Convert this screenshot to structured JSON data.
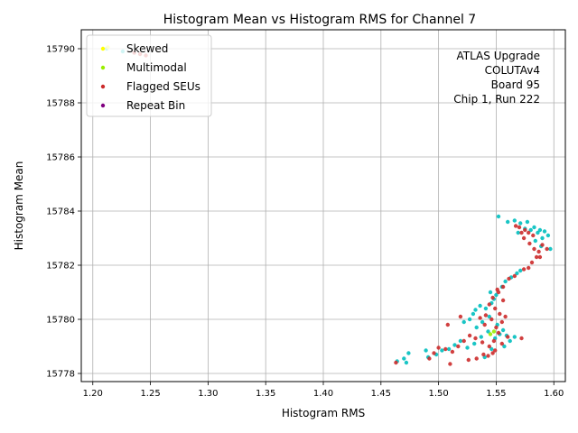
{
  "chart_data": {
    "type": "scatter",
    "title": "Histogram Mean vs Histogram RMS for Channel 7",
    "xlabel": "Histogram RMS",
    "ylabel": "Histogram Mean",
    "xlim": [
      1.19,
      1.61
    ],
    "ylim": [
      15777.7,
      15790.7
    ],
    "xticks": [
      "1.20",
      "1.25",
      "1.30",
      "1.35",
      "1.40",
      "1.45",
      "1.50",
      "1.55",
      "1.60"
    ],
    "yticks": [
      "15778",
      "15780",
      "15782",
      "15784",
      "15786",
      "15788",
      "15790"
    ],
    "grid": true,
    "legend_location": "upper-left",
    "annotation": [
      "ATLAS Upgrade",
      "COLUTAv4",
      "Board 95",
      "Chip 1, Run 222"
    ],
    "series": [
      {
        "name": "",
        "color": "#00bfbf",
        "points": [
          [
            1.212,
            15790.0
          ],
          [
            1.226,
            15789.9
          ],
          [
            1.552,
            15783.8
          ],
          [
            1.56,
            15783.6
          ],
          [
            1.566,
            15783.65
          ],
          [
            1.571,
            15783.55
          ],
          [
            1.577,
            15783.6
          ],
          [
            1.583,
            15783.4
          ],
          [
            1.588,
            15783.3
          ],
          [
            1.592,
            15783.25
          ],
          [
            1.595,
            15783.1
          ],
          [
            1.59,
            15783.0
          ],
          [
            1.586,
            15783.2
          ],
          [
            1.58,
            15783.3
          ],
          [
            1.575,
            15783.35
          ],
          [
            1.569,
            15783.2
          ],
          [
            1.597,
            15782.6
          ],
          [
            1.589,
            15782.7
          ],
          [
            1.584,
            15782.9
          ],
          [
            1.568,
            15781.7
          ],
          [
            1.563,
            15781.55
          ],
          [
            1.571,
            15781.8
          ],
          [
            1.558,
            15781.4
          ],
          [
            1.555,
            15781.2
          ],
          [
            1.55,
            15780.9
          ],
          [
            1.546,
            15780.6
          ],
          [
            1.541,
            15780.4
          ],
          [
            1.536,
            15780.5
          ],
          [
            1.53,
            15780.2
          ],
          [
            1.527,
            15780.0
          ],
          [
            1.522,
            15779.9
          ],
          [
            1.533,
            15779.7
          ],
          [
            1.538,
            15779.9
          ],
          [
            1.544,
            15780.1
          ],
          [
            1.551,
            15779.8
          ],
          [
            1.556,
            15779.6
          ],
          [
            1.559,
            15779.4
          ],
          [
            1.562,
            15779.2
          ],
          [
            1.557,
            15779.0
          ],
          [
            1.549,
            15779.3
          ],
          [
            1.543,
            15779.55
          ],
          [
            1.537,
            15779.35
          ],
          [
            1.531,
            15779.1
          ],
          [
            1.525,
            15778.95
          ],
          [
            1.519,
            15779.2
          ],
          [
            1.514,
            15779.05
          ],
          [
            1.509,
            15778.9
          ],
          [
            1.503,
            15778.85
          ],
          [
            1.498,
            15778.7
          ],
          [
            1.491,
            15778.6
          ],
          [
            1.489,
            15778.85
          ],
          [
            1.474,
            15778.75
          ],
          [
            1.47,
            15778.55
          ],
          [
            1.472,
            15778.4
          ],
          [
            1.464,
            15778.45
          ],
          [
            1.54,
            15778.6
          ],
          [
            1.546,
            15778.9
          ],
          [
            1.553,
            15779.45
          ],
          [
            1.566,
            15779.35
          ],
          [
            1.548,
            15780.75
          ],
          [
            1.545,
            15781.0
          ],
          [
            1.532,
            15780.35
          ]
        ]
      },
      {
        "name": "Skewed",
        "color": "#ffff00",
        "points": [
          [
            1.213,
            15790.05
          ]
        ]
      },
      {
        "name": "Multimodal",
        "color": "#99ee00",
        "points": [
          [
            1.545,
            15779.45
          ],
          [
            1.548,
            15779.55
          ]
        ]
      },
      {
        "name": "Flagged SEUs",
        "color": "#cc2b2b",
        "points": [
          [
            1.236,
            15789.85
          ],
          [
            1.241,
            15789.8
          ],
          [
            1.246,
            15789.75
          ],
          [
            1.57,
            15783.4
          ],
          [
            1.575,
            15783.3
          ],
          [
            1.578,
            15783.2
          ],
          [
            1.582,
            15783.1
          ],
          [
            1.574,
            15783.0
          ],
          [
            1.572,
            15783.2
          ],
          [
            1.579,
            15782.8
          ],
          [
            1.583,
            15782.6
          ],
          [
            1.587,
            15782.5
          ],
          [
            1.59,
            15782.75
          ],
          [
            1.594,
            15782.6
          ],
          [
            1.585,
            15782.3
          ],
          [
            1.581,
            15782.1
          ],
          [
            1.578,
            15781.9
          ],
          [
            1.574,
            15781.85
          ],
          [
            1.566,
            15781.6
          ],
          [
            1.561,
            15781.5
          ],
          [
            1.556,
            15781.2
          ],
          [
            1.552,
            15781.0
          ],
          [
            1.547,
            15780.8
          ],
          [
            1.544,
            15780.55
          ],
          [
            1.549,
            15780.4
          ],
          [
            1.553,
            15780.2
          ],
          [
            1.546,
            15780.0
          ],
          [
            1.541,
            15780.15
          ],
          [
            1.536,
            15780.05
          ],
          [
            1.54,
            15779.8
          ],
          [
            1.55,
            15779.7
          ],
          [
            1.555,
            15779.9
          ],
          [
            1.558,
            15780.1
          ],
          [
            1.552,
            15779.5
          ],
          [
            1.548,
            15779.2
          ],
          [
            1.544,
            15779.0
          ],
          [
            1.549,
            15778.85
          ],
          [
            1.555,
            15779.1
          ],
          [
            1.56,
            15779.35
          ],
          [
            1.572,
            15779.3
          ],
          [
            1.538,
            15779.15
          ],
          [
            1.532,
            15779.3
          ],
          [
            1.527,
            15779.4
          ],
          [
            1.522,
            15779.2
          ],
          [
            1.517,
            15779.0
          ],
          [
            1.512,
            15778.8
          ],
          [
            1.506,
            15778.9
          ],
          [
            1.5,
            15778.95
          ],
          [
            1.496,
            15778.75
          ],
          [
            1.492,
            15778.55
          ],
          [
            1.51,
            15778.35
          ],
          [
            1.526,
            15778.5
          ],
          [
            1.533,
            15778.55
          ],
          [
            1.539,
            15778.7
          ],
          [
            1.543,
            15778.65
          ],
          [
            1.547,
            15778.75
          ],
          [
            1.463,
            15778.4
          ],
          [
            1.519,
            15780.1
          ],
          [
            1.508,
            15779.8
          ],
          [
            1.556,
            15780.7
          ],
          [
            1.551,
            15781.1
          ],
          [
            1.588,
            15782.3
          ],
          [
            1.567,
            15783.45
          ]
        ]
      },
      {
        "name": "Repeat Bin",
        "color": "#800080",
        "points": []
      }
    ]
  }
}
